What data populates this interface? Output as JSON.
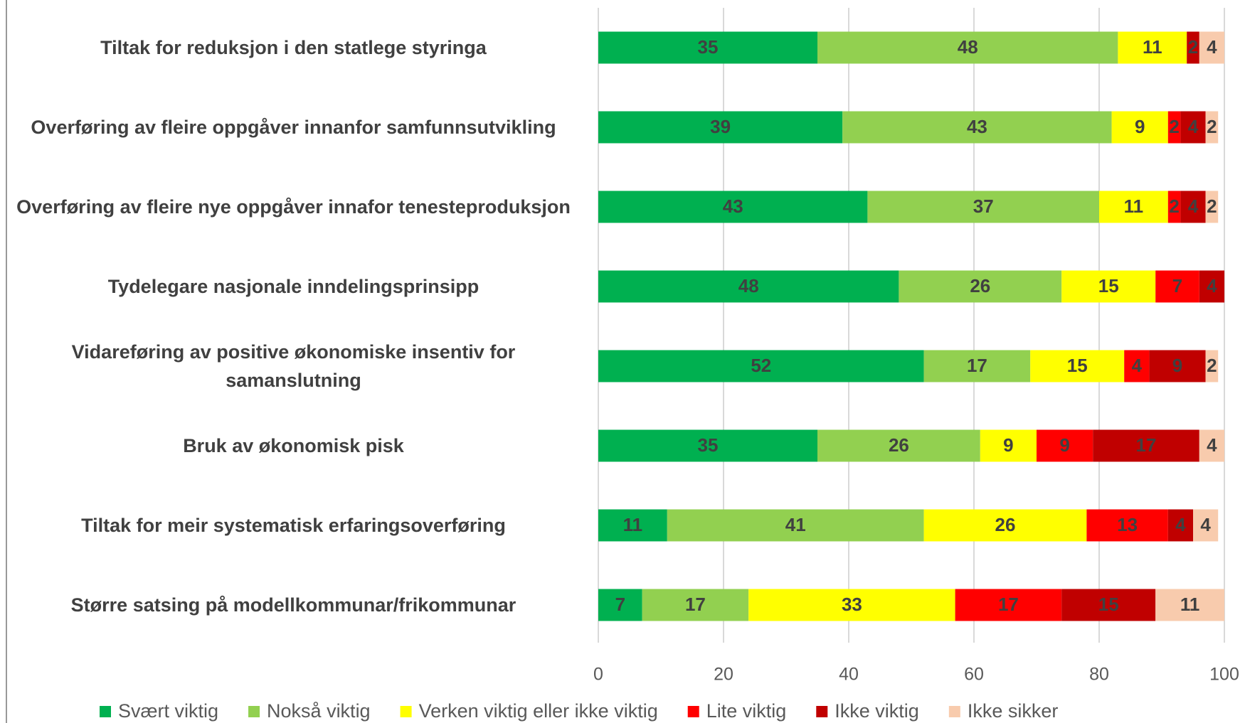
{
  "chart_data": {
    "type": "stacked_bar_horizontal",
    "categories": [
      "Tiltak for reduksjon i den statlege styringa",
      "Overføring av fleire oppgåver innanfor samfunnsutvikling",
      "Overføring av fleire nye oppgåver innafor tenesteproduksjon",
      "Tydelegare nasjonale inndelingsprinsipp",
      "Vidareføring av positive økonomiske insentiv for samanslutning",
      "Bruk av økonomisk pisk",
      "Tiltak for meir systematisk erfaringsoverføring",
      "Større satsing på modellkommunar/frikommunar"
    ],
    "series": [
      {
        "name": "Svært viktig",
        "color": "#00b050",
        "values": [
          35,
          39,
          43,
          48,
          52,
          35,
          11,
          7
        ]
      },
      {
        "name": "Nokså viktig",
        "color": "#92d050",
        "values": [
          48,
          43,
          37,
          26,
          17,
          26,
          41,
          17
        ]
      },
      {
        "name": "Verken viktig eller ikke viktig",
        "color": "#ffff00",
        "values": [
          11,
          9,
          11,
          15,
          15,
          9,
          26,
          33
        ]
      },
      {
        "name": "Lite viktig",
        "color": "#ff0000",
        "values": [
          null,
          2,
          2,
          7,
          4,
          9,
          13,
          17
        ]
      },
      {
        "name": "Ikke viktig",
        "color": "#c00000",
        "values": [
          2,
          4,
          4,
          4,
          9,
          17,
          4,
          15
        ]
      },
      {
        "name": "Ikke sikker",
        "color": "#f8cbad",
        "values": [
          4,
          2,
          2,
          null,
          2,
          4,
          4,
          11
        ]
      }
    ],
    "xlim": [
      0,
      100
    ],
    "xticks": [
      0,
      20,
      40,
      60,
      80,
      100
    ],
    "grid": true,
    "legend": "bottom"
  }
}
